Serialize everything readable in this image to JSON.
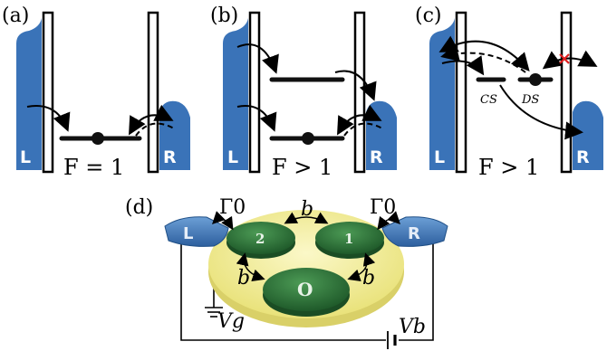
{
  "panels": [
    {
      "tag": "(a)",
      "left_lead": "L",
      "right_lead": "R",
      "fano": "F = 1"
    },
    {
      "tag": "(b)",
      "left_lead": "L",
      "right_lead": "R",
      "fano": "F > 1"
    },
    {
      "tag": "(c)",
      "left_lead": "L",
      "right_lead": "R",
      "fano": "F > 1",
      "cs_label": "CS",
      "ds_label": "DS"
    }
  ],
  "panel_d": {
    "tag": "(d)",
    "left_lead": "L",
    "right_lead": "R",
    "gamma_left": "Γ0",
    "gamma_right": "Γ0",
    "coupling": "b",
    "dots": [
      "2",
      "1",
      "O"
    ],
    "gate_voltage": "Vg",
    "bias_voltage": "Vb"
  },
  "colors": {
    "lead": "#3a73b8",
    "dot": "#2f7a3a",
    "substrate": "#f3ee9a"
  }
}
